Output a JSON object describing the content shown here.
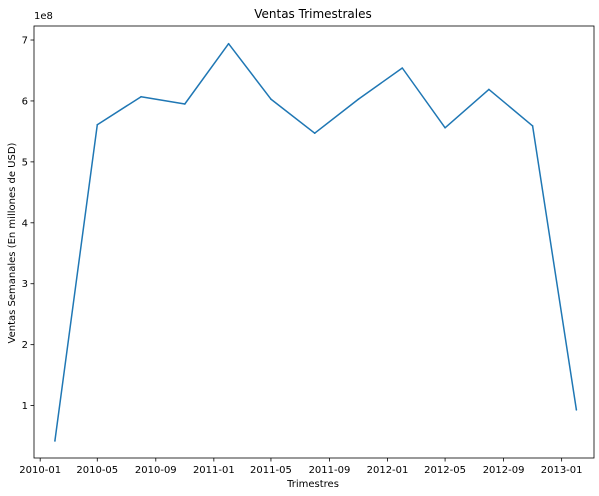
{
  "chart_data": {
    "type": "line",
    "title": "Ventas Trimestrales",
    "xlabel": "Trimestres",
    "ylabel": "Ventas Semanales (En millones de USD)",
    "offset_text": "1e8",
    "x_tick_labels": [
      "2010-01",
      "2010-05",
      "2010-09",
      "2011-01",
      "2011-05",
      "2011-09",
      "2012-01",
      "2012-05",
      "2012-09",
      "2013-01"
    ],
    "x_tick_dates": [
      "2010-01-01",
      "2010-05-01",
      "2010-09-01",
      "2011-01-01",
      "2011-05-01",
      "2011-09-01",
      "2012-01-01",
      "2012-05-01",
      "2012-09-01",
      "2013-01-01"
    ],
    "y_tick_labels": [
      "1",
      "2",
      "3",
      "4",
      "5",
      "6",
      "7"
    ],
    "y_ticks": [
      100000000,
      200000000,
      300000000,
      400000000,
      500000000,
      600000000,
      700000000
    ],
    "xlim": [
      "2009-12-19",
      "2013-03-10"
    ],
    "ylim": [
      14000000,
      723000000
    ],
    "grid": false,
    "series": [
      {
        "color": "#1f77b4",
        "x": [
          "2010-02-01",
          "2010-05-01",
          "2010-08-01",
          "2010-11-01",
          "2011-02-01",
          "2011-05-01",
          "2011-08-01",
          "2011-11-01",
          "2012-02-01",
          "2012-05-01",
          "2012-08-01",
          "2012-11-01",
          "2013-02-01"
        ],
        "values": [
          42000000,
          561000000,
          607000000,
          595000000,
          694000000,
          603000000,
          547000000,
          603000000,
          654000000,
          556000000,
          619000000,
          559000000,
          93000000
        ]
      }
    ]
  }
}
